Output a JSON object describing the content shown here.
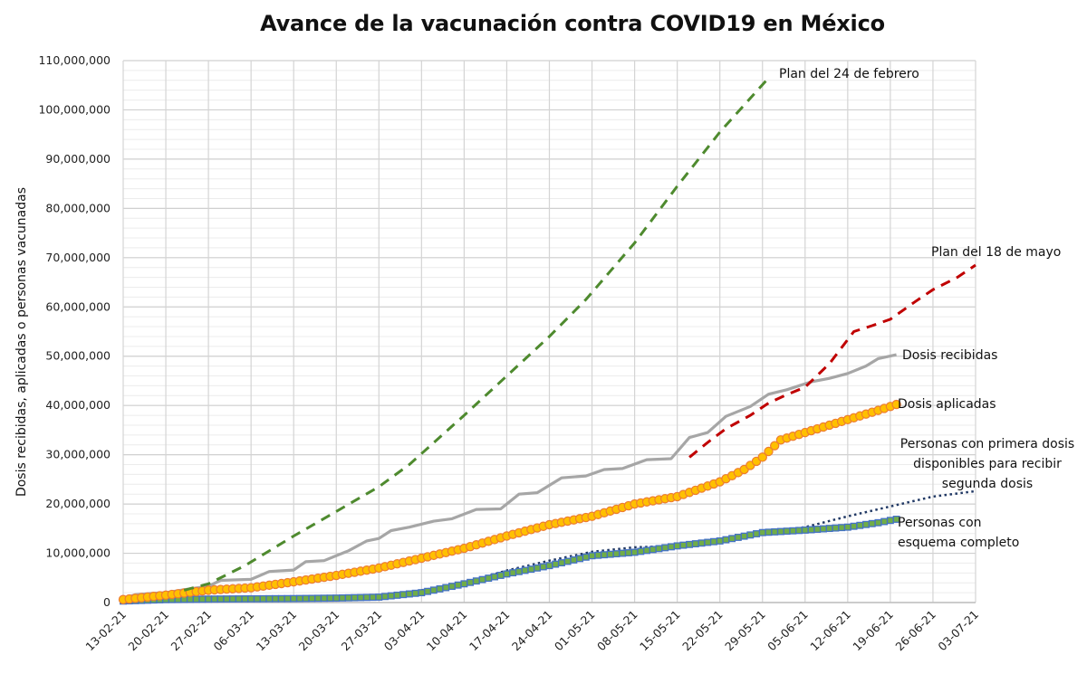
{
  "chart_data": {
    "type": "line",
    "title": "Avance de la vacunación contra COVID19 en México",
    "xlabel": "",
    "ylabel": "Dosis recibidas, aplicadas o personas vacunadas",
    "x_start_date": "13-02-21",
    "x_unit": "days since 13-02-21",
    "xlim": [
      0,
      140
    ],
    "ylim": [
      0,
      110000000
    ],
    "y_tick_step": 10000000,
    "y_ticks": [
      "0",
      "10,000,000",
      "20,000,000",
      "30,000,000",
      "40,000,000",
      "50,000,000",
      "60,000,000",
      "70,000,000",
      "80,000,000",
      "90,000,000",
      "100,000,000",
      "110,000,000"
    ],
    "x_ticks": [
      "13-02-21",
      "20-02-21",
      "27-02-21",
      "06-03-21",
      "13-03-21",
      "20-03-21",
      "27-03-21",
      "03-04-21",
      "10-04-21",
      "17-04-21",
      "24-04-21",
      "01-05-21",
      "08-05-21",
      "15-05-21",
      "22-05-21",
      "29-05-21",
      "05-06-21",
      "12-06-21",
      "19-06-21",
      "26-06-21",
      "03-07-21"
    ],
    "grid": true,
    "minor_grid_y_step": 2000000,
    "legend": "none (direct labels at right end of series)",
    "series": [
      {
        "name": "Plan del 24 de febrero",
        "style": "dashed",
        "color": "#4e8a2e",
        "x": [
          10,
          14,
          20,
          28,
          35,
          42,
          47,
          56,
          63,
          70,
          76,
          84,
          91,
          98,
          106
        ],
        "values": [
          2500000,
          3800000,
          7500000,
          13500000,
          18500000,
          23500000,
          28000000,
          38000000,
          46000000,
          54000000,
          61500000,
          73000000,
          84500000,
          95500000,
          106500000
        ]
      },
      {
        "name": "Plan del 18 de mayo",
        "style": "dashed",
        "color": "#c00000",
        "x": [
          93,
          96,
          99,
          103,
          106,
          109,
          112,
          116,
          120,
          123,
          126,
          130,
          133,
          137,
          140
        ],
        "values": [
          29500000,
          32500000,
          35300000,
          38000000,
          40500000,
          42200000,
          43700000,
          48500000,
          55000000,
          56200000,
          57500000,
          61000000,
          63500000,
          66000000,
          68500000
        ]
      },
      {
        "name": "Dosis recibidas",
        "style": "solid",
        "color": "#a6a6a6",
        "x": [
          0,
          2,
          5,
          7,
          10,
          14,
          16,
          21,
          24,
          28,
          30,
          33,
          37,
          40,
          42,
          44,
          47,
          51,
          54,
          58,
          62,
          65,
          68,
          72,
          76,
          79,
          82,
          86,
          90,
          93,
          96,
          99,
          103,
          106,
          109,
          113,
          116,
          119,
          122,
          124,
          127
        ],
        "values": [
          800000,
          1600000,
          1900000,
          2000000,
          2600000,
          3300000,
          4500000,
          4700000,
          6300000,
          6600000,
          8300000,
          8500000,
          10500000,
          12500000,
          13000000,
          14600000,
          15300000,
          16500000,
          17000000,
          18900000,
          19000000,
          22000000,
          22300000,
          25300000,
          25700000,
          27000000,
          27200000,
          29000000,
          29200000,
          33500000,
          34500000,
          37800000,
          39800000,
          42300000,
          43200000,
          44800000,
          45500000,
          46500000,
          48000000,
          49500000,
          50300000
        ]
      },
      {
        "name": "Dosis aplicadas",
        "style": "markers-circle",
        "color": "#ffc000",
        "marker_edge": "#ed7d31",
        "x": [
          0,
          7,
          14,
          21,
          28,
          35,
          42,
          49,
          56,
          63,
          70,
          77,
          84,
          91,
          98,
          102,
          105,
          108,
          112,
          116,
          120,
          124,
          127
        ],
        "values": [
          600000,
          1500000,
          2500000,
          3000000,
          4200000,
          5500000,
          7000000,
          9000000,
          11000000,
          13500000,
          15800000,
          17500000,
          20000000,
          21500000,
          24500000,
          27000000,
          29500000,
          33000000,
          34500000,
          36000000,
          37500000,
          39000000,
          40200000
        ]
      },
      {
        "name": "Personas con primera dosis disponibles para recibir segunda dosis",
        "style": "dotted",
        "color": "#203864",
        "x": [
          0,
          14,
          28,
          42,
          49,
          56,
          63,
          70,
          77,
          84,
          91,
          98,
          105,
          112,
          119,
          126,
          133,
          140
        ],
        "values": [
          300000,
          700000,
          900000,
          1100000,
          2500000,
          4000000,
          6500000,
          8500000,
          10300000,
          11200000,
          11500000,
          12800000,
          14200000,
          15300000,
          17500000,
          19500000,
          21500000,
          22600000
        ]
      },
      {
        "name": "Personas con esquema completo",
        "style": "markers-square",
        "color": "#4472c4",
        "marker_fill": "#70ad47",
        "x": [
          0,
          7,
          14,
          21,
          28,
          35,
          42,
          49,
          56,
          63,
          70,
          77,
          84,
          91,
          98,
          105,
          112,
          119,
          124,
          127
        ],
        "values": [
          300000,
          600000,
          700000,
          750000,
          800000,
          900000,
          1100000,
          2000000,
          3800000,
          5800000,
          7500000,
          9500000,
          10200000,
          11500000,
          12500000,
          14200000,
          14700000,
          15300000,
          16200000,
          16900000
        ]
      }
    ],
    "annotations": [
      {
        "text": "Plan del 24 de febrero",
        "series": 0
      },
      {
        "text": "Plan del 18 de mayo",
        "series": 1
      },
      {
        "text": "Dosis recibidas",
        "series": 2
      },
      {
        "text": "Dosis aplicadas",
        "series": 3
      },
      {
        "lines": [
          "Personas con primera dosis",
          "disponibles para recibir",
          "segunda dosis"
        ],
        "series": 4
      },
      {
        "lines": [
          "Personas con",
          "esquema completo"
        ],
        "series": 5
      }
    ]
  }
}
